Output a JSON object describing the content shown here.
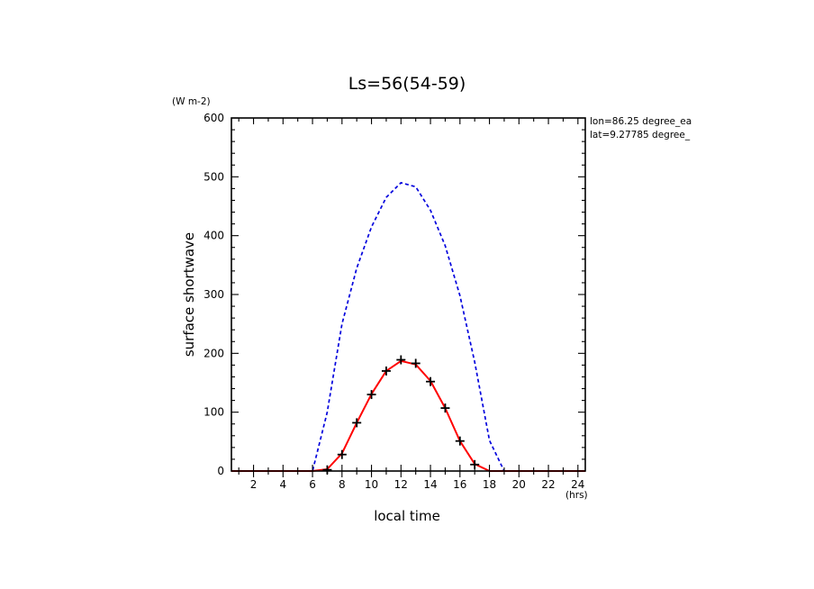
{
  "chart_data": {
    "type": "line",
    "title": "Ls=56(54-59)",
    "xlabel": "local time",
    "xunit": "(hrs)",
    "ylabel": "surface shortwave",
    "yunit": "(W m-2)",
    "xlim": [
      0.5,
      24.5
    ],
    "ylim": [
      0,
      600
    ],
    "xticks": [
      2,
      4,
      6,
      8,
      10,
      12,
      14,
      16,
      18,
      20,
      22,
      24
    ],
    "yticks": [
      0,
      100,
      200,
      300,
      400,
      500,
      600
    ],
    "annotation": [
      "lon=86.25 degree_ea",
      "lat=9.27785 degree_"
    ],
    "grid": false,
    "series": [
      {
        "style": "dashed",
        "color": "#0000dd",
        "x": [
          0.5,
          1,
          2,
          3,
          4,
          5,
          6,
          7,
          8,
          9,
          10,
          11,
          12,
          13,
          14,
          15,
          16,
          17,
          18,
          19,
          20,
          21,
          22,
          23,
          24,
          24.5
        ],
        "y": [
          0,
          0,
          0,
          0,
          0,
          0,
          0,
          100,
          250,
          345,
          415,
          465,
          490,
          483,
          443,
          383,
          298,
          185,
          52,
          0,
          0,
          0,
          0,
          0,
          0,
          0
        ]
      },
      {
        "style": "solid",
        "color": "#ff0000",
        "x": [
          0.5,
          1,
          2,
          3,
          4,
          5,
          6,
          7,
          8,
          9,
          10,
          11,
          12,
          13,
          14,
          15,
          16,
          17,
          18,
          19,
          20,
          21,
          22,
          23,
          24,
          24.5
        ],
        "y": [
          0,
          0,
          0,
          0,
          0,
          0,
          0,
          3,
          30,
          82,
          131,
          170,
          187,
          181,
          153,
          107,
          51,
          12,
          0,
          0,
          0,
          0,
          0,
          0,
          0,
          0
        ]
      },
      {
        "style": "markers",
        "marker": "plus",
        "color": "#000000",
        "x": [
          7,
          8,
          9,
          10,
          11,
          12,
          13,
          14,
          15,
          16,
          17
        ],
        "y": [
          2,
          28,
          82,
          130,
          170,
          189,
          183,
          152,
          107,
          51,
          11
        ]
      }
    ]
  }
}
